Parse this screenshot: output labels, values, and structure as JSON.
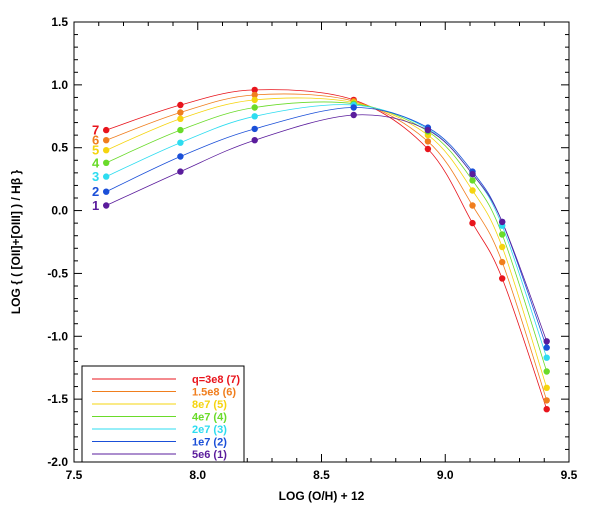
{
  "chart_data": {
    "type": "scatter",
    "xlabel": "LOG (O/H) + 12",
    "ylabel": "LOG { ( [OII]+[OIII] ) / Hβ }",
    "xlim": [
      7.5,
      9.5
    ],
    "ylim": [
      -2.0,
      1.5
    ],
    "x_ticks": [
      "7.5",
      "8.0",
      "8.5",
      "9.0",
      "9.5"
    ],
    "y_ticks": [
      "-2.0",
      "-1.5",
      "-1.0",
      "-0.5",
      "0.0",
      "0.5",
      "1.0",
      "1.5"
    ],
    "grid": false,
    "legend_position": "bottom-left",
    "x": [
      7.63,
      7.93,
      8.23,
      8.63,
      8.93,
      9.11,
      9.23,
      9.41
    ],
    "series": [
      {
        "name": "q=3e8 (7)",
        "label": "7",
        "color": "#e8141c",
        "values": [
          0.64,
          0.84,
          0.96,
          0.88,
          0.49,
          -0.1,
          -0.54,
          -1.58
        ]
      },
      {
        "name": "1.5e8 (6)",
        "label": "6",
        "color": "#f07e1e",
        "values": [
          0.56,
          0.78,
          0.92,
          0.87,
          0.55,
          0.04,
          -0.41,
          -1.51
        ]
      },
      {
        "name": "8e7 (5)",
        "label": "5",
        "color": "#f5d40f",
        "values": [
          0.48,
          0.73,
          0.88,
          0.86,
          0.6,
          0.16,
          -0.29,
          -1.41
        ]
      },
      {
        "name": "4e7 (4)",
        "label": "4",
        "color": "#6adb2a",
        "values": [
          0.38,
          0.64,
          0.82,
          0.85,
          0.63,
          0.24,
          -0.19,
          -1.28
        ]
      },
      {
        "name": "2e7 (3)",
        "label": "3",
        "color": "#2ddcf0",
        "values": [
          0.27,
          0.54,
          0.75,
          0.84,
          0.65,
          0.29,
          -0.12,
          -1.17
        ]
      },
      {
        "name": "1e7 (2)",
        "label": "2",
        "color": "#1a4fd8",
        "values": [
          0.15,
          0.43,
          0.65,
          0.82,
          0.66,
          0.31,
          -0.09,
          -1.09
        ]
      },
      {
        "name": "5e6 (1)",
        "label": "1",
        "color": "#5a1c9c",
        "values": [
          0.04,
          0.31,
          0.56,
          0.76,
          0.64,
          0.29,
          -0.09,
          -1.04
        ]
      }
    ]
  }
}
